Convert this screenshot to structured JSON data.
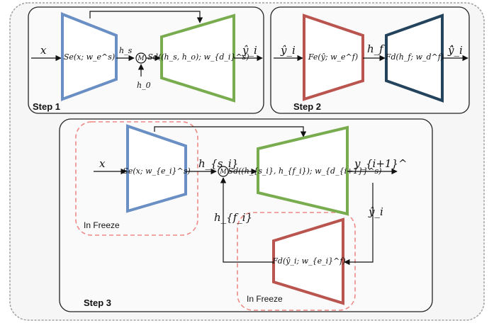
{
  "colors": {
    "blue": "#6a8fc4",
    "green": "#79ac4f",
    "red": "#b9554e",
    "navy": "#24445e",
    "freeze_border": "#ee8a86",
    "panel_bg": "#f4f4f4",
    "outer_border": "#a0a0a0"
  },
  "step1": {
    "title": "Step 1",
    "x": "x",
    "encoder": "Se(x; w_e^s)",
    "hs": "h_s",
    "merge": "M",
    "h0": "h_0",
    "decoder": "Sd((h_s, h_o); w_{d_i}^s)",
    "output": "ŷ_i"
  },
  "step2": {
    "title": "Step 2",
    "input": "ŷ_i",
    "encoder": "Fe(ŷ; w_e^f)",
    "hf": "h_f",
    "decoder": "Fd(h_f; w_d^f)",
    "output": "ŷ̂_i"
  },
  "step3": {
    "title": "Step 3",
    "x": "x",
    "encoder": "Se(x; w_{e_i}^s)",
    "hs": "h_{s_i}",
    "merge": "M",
    "decoder": "Sd((h_{s_i}, h_{f_i}); w_{d_{i+1}}^s)",
    "output": "y_{i+1}^",
    "feedback_in": "ŷ_i",
    "fdecoder": "Fd(ŷ_i; w_{e_i}^f)",
    "hf": "h_{f_i}",
    "freeze_left": "In Freeze",
    "freeze_right": "In Freeze"
  }
}
